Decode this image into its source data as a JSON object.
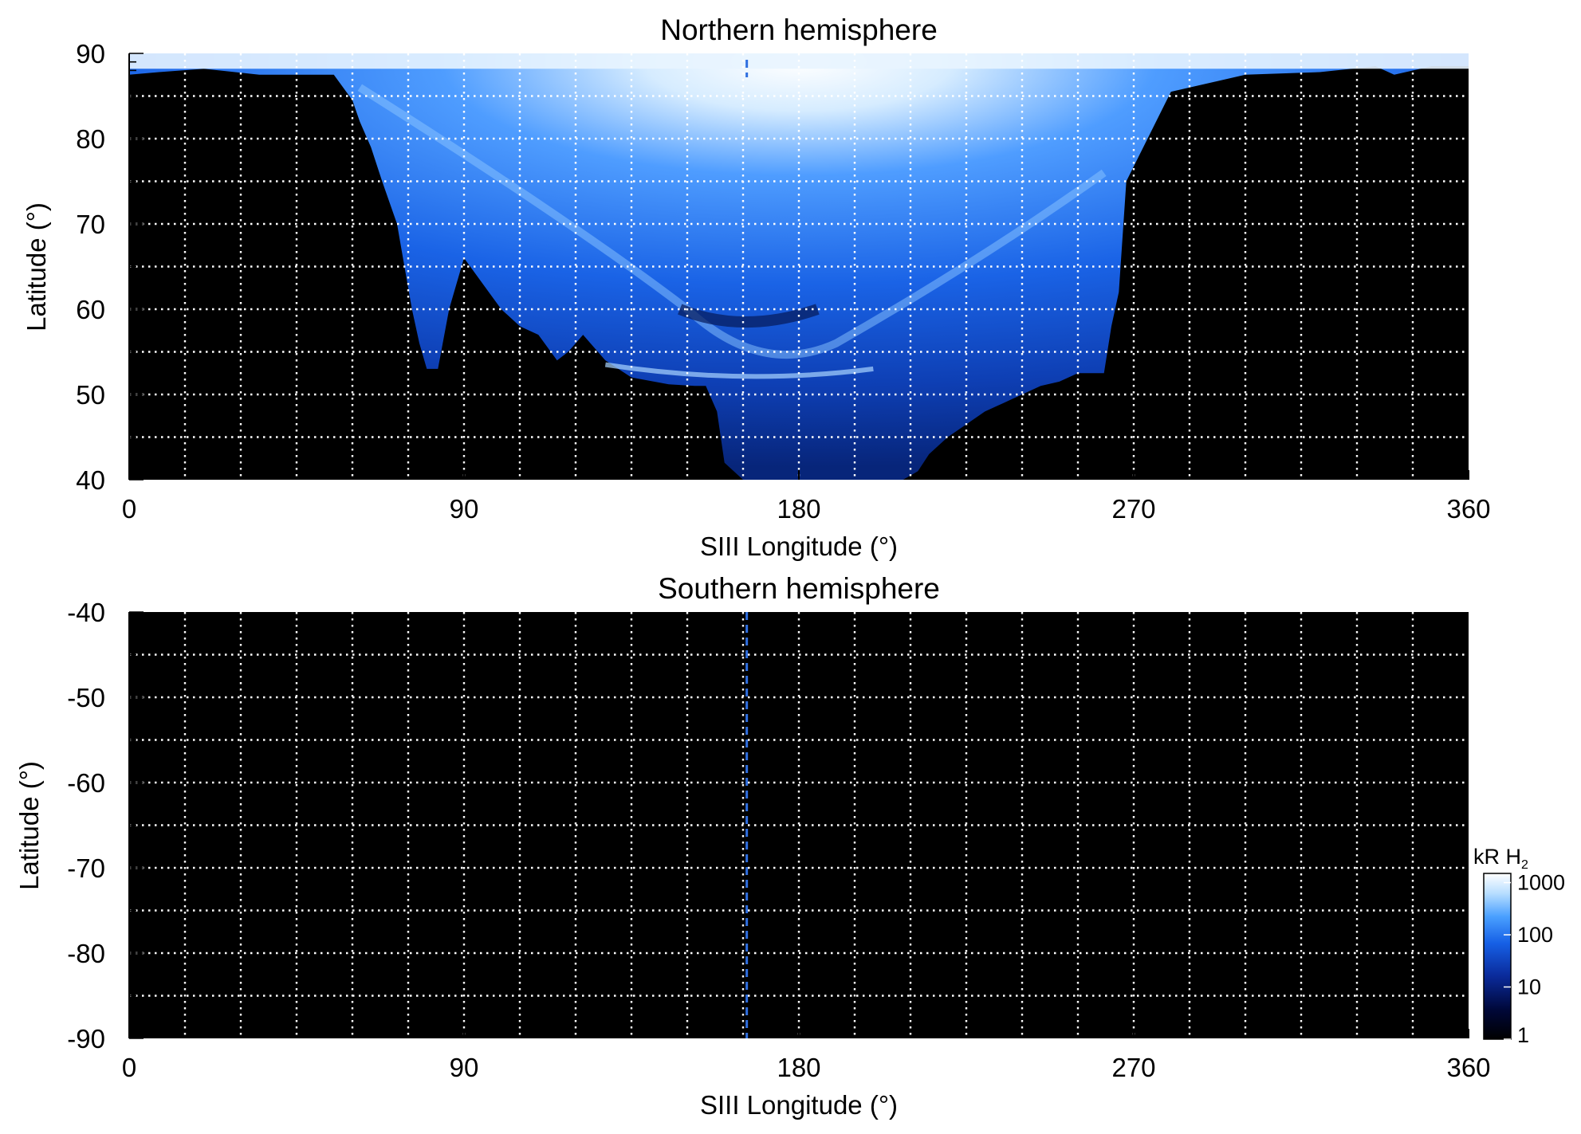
{
  "chart_data": [
    {
      "type": "heatmap",
      "title": "Northern hemisphere",
      "xlabel": "SIII Longitude (°)",
      "ylabel": "Latitude (°)",
      "xlim": [
        0,
        360
      ],
      "ylim": [
        40,
        90
      ],
      "x_ticks": [
        0,
        90,
        180,
        270,
        360
      ],
      "y_ticks": [
        40,
        50,
        60,
        70,
        80,
        90
      ],
      "x_tick_labels": [
        "0",
        "90",
        "180",
        "270",
        "360"
      ],
      "y_tick_labels": [
        "40",
        "50",
        "60",
        "70",
        "80",
        "90"
      ],
      "grid": true,
      "grid_x_step": 15,
      "grid_y_step": 5,
      "region_boundary": {
        "lon": [
          0,
          8,
          20,
          35,
          45,
          55,
          60,
          62,
          65,
          68,
          72,
          74,
          76,
          78,
          80,
          83,
          86,
          90,
          95,
          100,
          105,
          110,
          115,
          118,
          122,
          128,
          135,
          145,
          152,
          155,
          158,
          160,
          165,
          170,
          175,
          180,
          190,
          200,
          208,
          212,
          215,
          220,
          225,
          230,
          235,
          240,
          245,
          250,
          255,
          258,
          262,
          264,
          266,
          268,
          280,
          300,
          320,
          335,
          340,
          350,
          360
        ],
        "lat_min": [
          87.5,
          87.8,
          88.2,
          87.5,
          87.5,
          87.5,
          84.5,
          82,
          79,
          75,
          70,
          65,
          60,
          56,
          53,
          53,
          60,
          66,
          63,
          60,
          58,
          57,
          54,
          55,
          57,
          54,
          52,
          51.2,
          51,
          51,
          48,
          42,
          40,
          40,
          40,
          40,
          40,
          40,
          40,
          41,
          43,
          45,
          46.5,
          48,
          49,
          50,
          51,
          51.5,
          52.5,
          52.5,
          52.5,
          58,
          62,
          75,
          85.5,
          87.5,
          87.8,
          88.5,
          87.5,
          88.5,
          88.5
        ]
      },
      "dashed_meridian_lon": 166,
      "color_scale": "log blue-white"
    },
    {
      "type": "heatmap",
      "title": "Southern hemisphere",
      "xlabel": "SIII Longitude (°)",
      "ylabel": "Latitude (°)",
      "xlim": [
        0,
        360
      ],
      "ylim": [
        -90,
        -40
      ],
      "x_ticks": [
        0,
        90,
        180,
        270,
        360
      ],
      "y_ticks": [
        -40,
        -50,
        -60,
        -70,
        -80,
        -90
      ],
      "x_tick_labels": [
        "0",
        "90",
        "180",
        "270",
        "360"
      ],
      "y_tick_labels": [
        "-40",
        "-50",
        "-60",
        "-70",
        "-80",
        "-90"
      ],
      "grid": true,
      "grid_x_step": 15,
      "grid_y_step": 5,
      "dashed_meridian_lon": 166,
      "color_scale": "log blue-white"
    }
  ],
  "colorbar": {
    "label_main": "kR H",
    "label_sub": "2",
    "ticks": [
      "1",
      "10",
      "100",
      "1000"
    ],
    "tick_values": [
      1,
      10,
      100,
      1000
    ],
    "scale": "log",
    "colors": [
      "#000000",
      "#00083a",
      "#0a2a9a",
      "#1660e6",
      "#4aa0ff",
      "#b8deff",
      "#ffffff"
    ]
  }
}
